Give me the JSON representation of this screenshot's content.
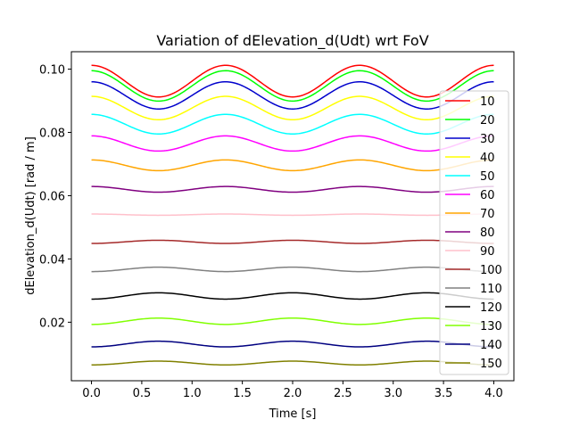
{
  "chart_data": {
    "type": "line",
    "title": "Variation of dElevation_d(Udt) wrt FoV",
    "xlabel": "Time [s]",
    "ylabel": "dElevation_d(Udt) [rad / m]",
    "xlim": [
      -0.2,
      4.2
    ],
    "ylim": [
      0.0015,
      0.1055
    ],
    "xticks": [
      "0.0",
      "0.5",
      "1.0",
      "1.5",
      "2.0",
      "2.5",
      "3.0",
      "3.5",
      "4.0"
    ],
    "yticks": [
      "0.02",
      "0.04",
      "0.06",
      "0.08",
      "0.10"
    ],
    "grid": false,
    "legend_position": "right",
    "period_s": 1.333,
    "series": [
      {
        "name": "10",
        "color": "#ff0000",
        "mean": 0.0962,
        "amplitude": 0.005
      },
      {
        "name": "20",
        "color": "#00ff00",
        "mean": 0.0947,
        "amplitude": 0.0048
      },
      {
        "name": "30",
        "color": "#0000cc",
        "mean": 0.0917,
        "amplitude": 0.0043
      },
      {
        "name": "40",
        "color": "#ffff00",
        "mean": 0.0877,
        "amplitude": 0.0037
      },
      {
        "name": "50",
        "color": "#00ffff",
        "mean": 0.0826,
        "amplitude": 0.0031
      },
      {
        "name": "60",
        "color": "#ff00ff",
        "mean": 0.0765,
        "amplitude": 0.0024
      },
      {
        "name": "70",
        "color": "#ffa500",
        "mean": 0.0696,
        "amplitude": 0.0017
      },
      {
        "name": "80",
        "color": "#800080",
        "mean": 0.062,
        "amplitude": 0.0009
      },
      {
        "name": "90",
        "color": "#ffc0cb",
        "mean": 0.054,
        "amplitude": 0.0002
      },
      {
        "name": "100",
        "color": "#a52a2a",
        "mean": 0.0454,
        "amplitude": -0.0005
      },
      {
        "name": "110",
        "color": "#808080",
        "mean": 0.0367,
        "amplitude": -0.0007
      },
      {
        "name": "120",
        "color": "#000000",
        "mean": 0.0283,
        "amplitude": -0.001
      },
      {
        "name": "130",
        "color": "#80ff00",
        "mean": 0.0203,
        "amplitude": -0.001
      },
      {
        "name": "140",
        "color": "#000080",
        "mean": 0.0131,
        "amplitude": -0.0009
      },
      {
        "name": "150",
        "color": "#808000",
        "mean": 0.0071,
        "amplitude": -0.0006
      }
    ]
  }
}
